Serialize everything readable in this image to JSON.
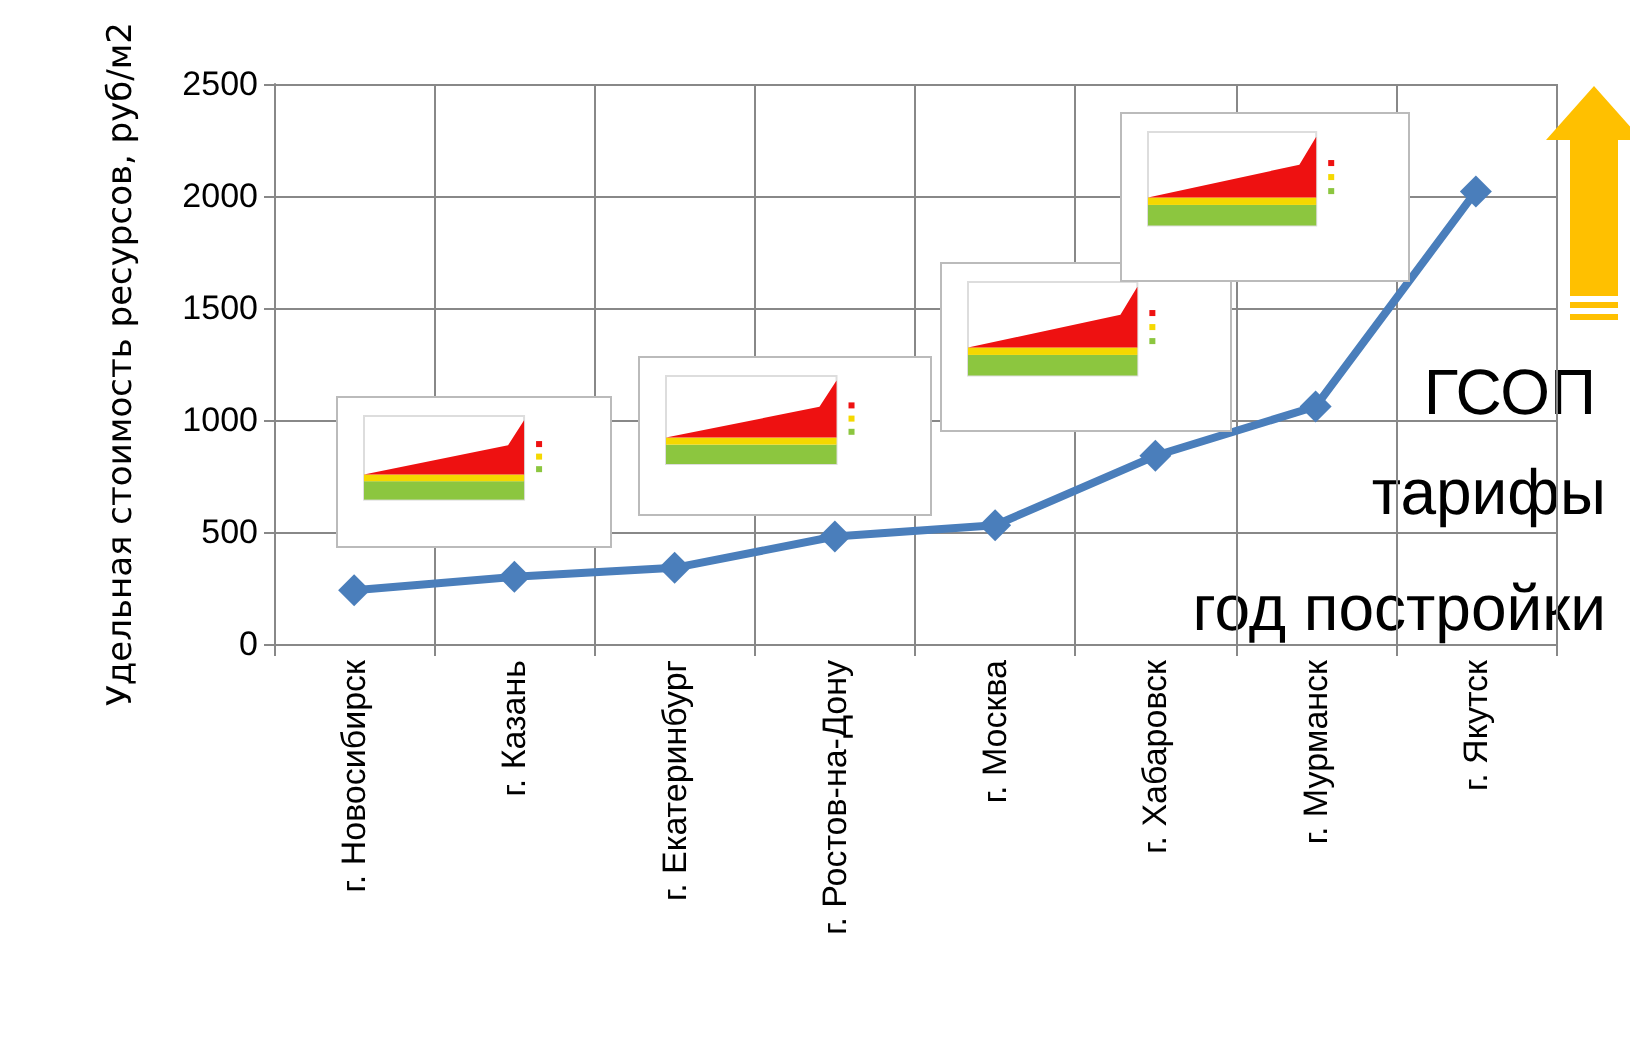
{
  "chart_data": {
    "type": "line",
    "ylabel": "Удельная стоимость ресурсов, руб/м2",
    "categories": [
      "г. Новосибирск",
      "г. Казань",
      "г. Екатеринбург",
      "г. Ростов-на-Дону",
      "г. Москва",
      "г. Хабаровск",
      "г. Мурманск",
      "г. Якутск"
    ],
    "series": [
      {
        "color": "#4a7ebb",
        "values": [
          240,
          300,
          340,
          480,
          530,
          840,
          1060,
          2020
        ]
      }
    ],
    "ylim": [
      0,
      2500
    ],
    "yticks": [
      0,
      500,
      1000,
      1500,
      2000,
      2500
    ],
    "grid": true,
    "marker": "diamond",
    "line_style": "solid",
    "annotations": [
      "ГСОП",
      "тарифы",
      "год постройки"
    ]
  }
}
